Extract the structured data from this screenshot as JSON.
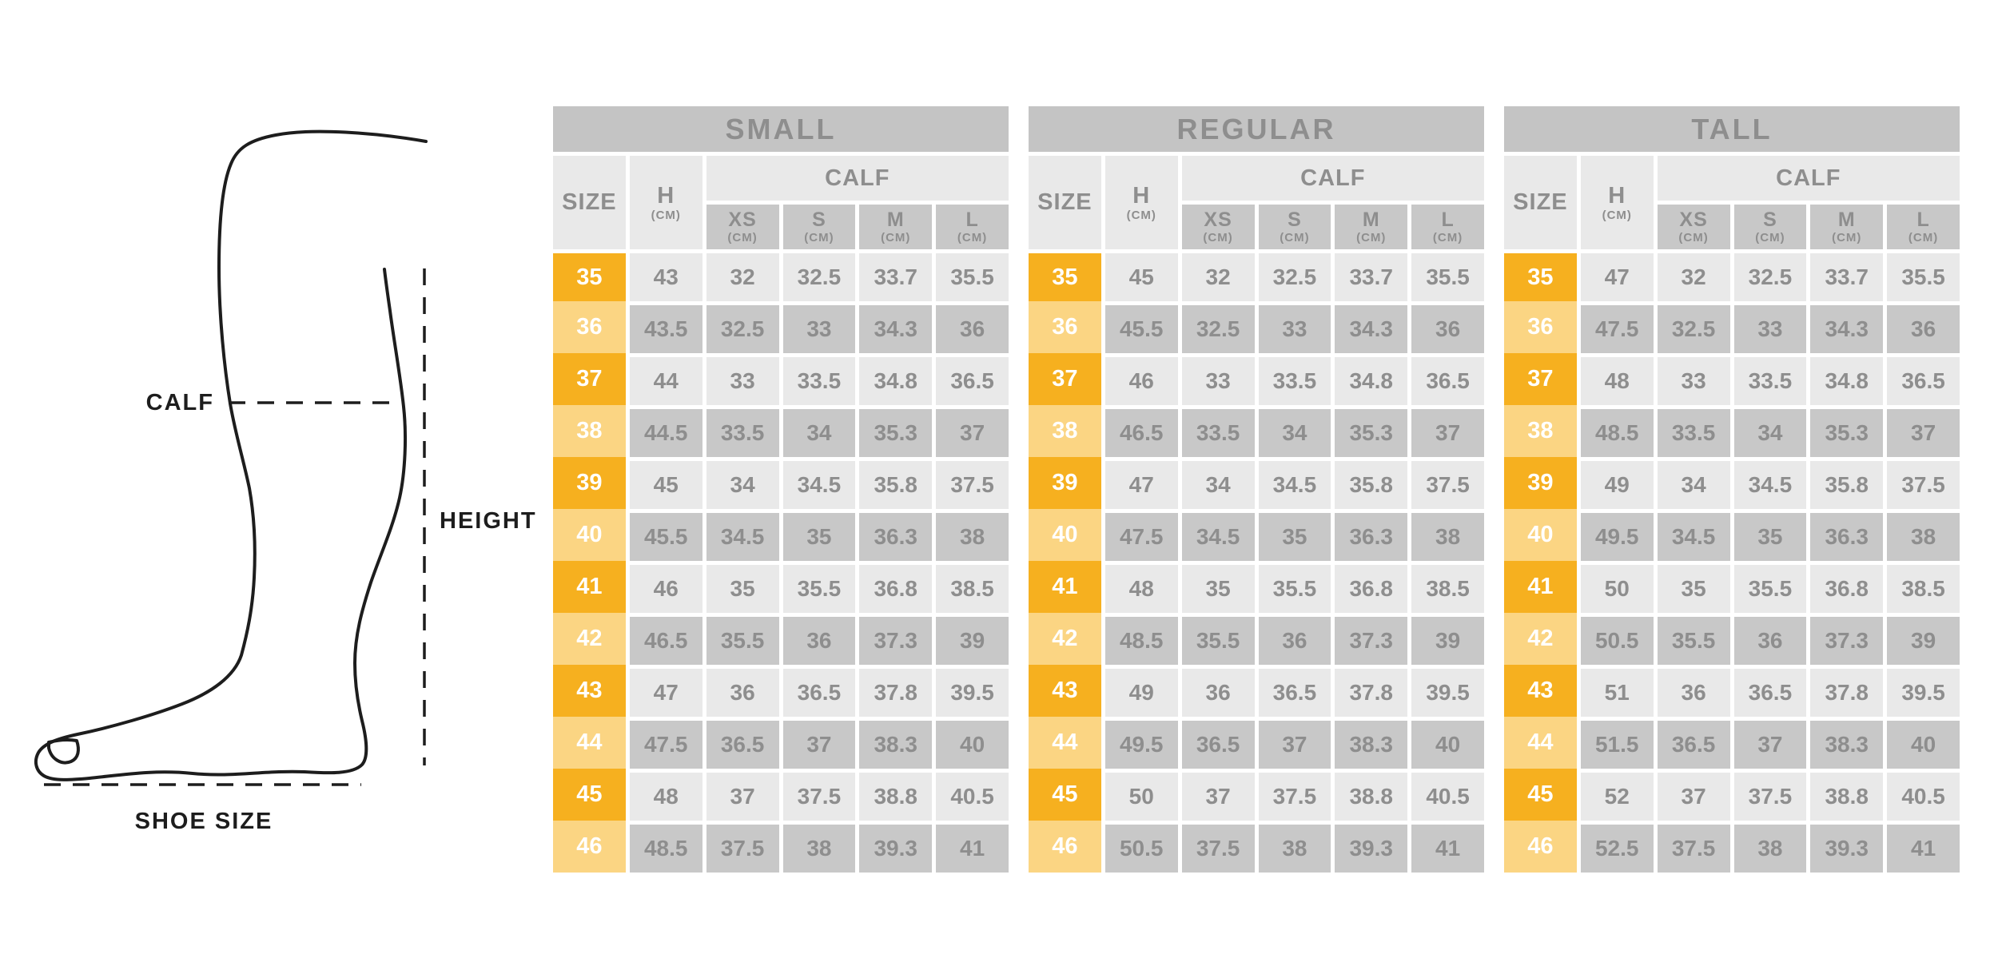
{
  "illustration": {
    "calf_label": "CALF",
    "height_label": "HEIGHT",
    "shoe_size_label": "SHOE SIZE"
  },
  "table_header": {
    "size": "SIZE",
    "h": "H",
    "unit": "(CM)",
    "calf": "CALF",
    "calf_cols": [
      "XS",
      "S",
      "M",
      "L"
    ]
  },
  "colors": {
    "accent_orange": "#F6B01F",
    "accent_orange_light": "#FBD583",
    "header_gray": "#C4C4C4",
    "row_gray_dark": "#C8C8C8",
    "row_gray_light": "#E9E9E9",
    "text_gray": "#8E8E8E",
    "line_ink": "#1D1D1D"
  },
  "tables": [
    {
      "title": "SMALL",
      "rows": [
        {
          "size": "35",
          "h": "43",
          "xs": "32",
          "s": "32.5",
          "m": "33.7",
          "l": "35.5"
        },
        {
          "size": "36",
          "h": "43.5",
          "xs": "32.5",
          "s": "33",
          "m": "34.3",
          "l": "36"
        },
        {
          "size": "37",
          "h": "44",
          "xs": "33",
          "s": "33.5",
          "m": "34.8",
          "l": "36.5"
        },
        {
          "size": "38",
          "h": "44.5",
          "xs": "33.5",
          "s": "34",
          "m": "35.3",
          "l": "37"
        },
        {
          "size": "39",
          "h": "45",
          "xs": "34",
          "s": "34.5",
          "m": "35.8",
          "l": "37.5"
        },
        {
          "size": "40",
          "h": "45.5",
          "xs": "34.5",
          "s": "35",
          "m": "36.3",
          "l": "38"
        },
        {
          "size": "41",
          "h": "46",
          "xs": "35",
          "s": "35.5",
          "m": "36.8",
          "l": "38.5"
        },
        {
          "size": "42",
          "h": "46.5",
          "xs": "35.5",
          "s": "36",
          "m": "37.3",
          "l": "39"
        },
        {
          "size": "43",
          "h": "47",
          "xs": "36",
          "s": "36.5",
          "m": "37.8",
          "l": "39.5"
        },
        {
          "size": "44",
          "h": "47.5",
          "xs": "36.5",
          "s": "37",
          "m": "38.3",
          "l": "40"
        },
        {
          "size": "45",
          "h": "48",
          "xs": "37",
          "s": "37.5",
          "m": "38.8",
          "l": "40.5"
        },
        {
          "size": "46",
          "h": "48.5",
          "xs": "37.5",
          "s": "38",
          "m": "39.3",
          "l": "41"
        }
      ]
    },
    {
      "title": "REGULAR",
      "rows": [
        {
          "size": "35",
          "h": "45",
          "xs": "32",
          "s": "32.5",
          "m": "33.7",
          "l": "35.5"
        },
        {
          "size": "36",
          "h": "45.5",
          "xs": "32.5",
          "s": "33",
          "m": "34.3",
          "l": "36"
        },
        {
          "size": "37",
          "h": "46",
          "xs": "33",
          "s": "33.5",
          "m": "34.8",
          "l": "36.5"
        },
        {
          "size": "38",
          "h": "46.5",
          "xs": "33.5",
          "s": "34",
          "m": "35.3",
          "l": "37"
        },
        {
          "size": "39",
          "h": "47",
          "xs": "34",
          "s": "34.5",
          "m": "35.8",
          "l": "37.5"
        },
        {
          "size": "40",
          "h": "47.5",
          "xs": "34.5",
          "s": "35",
          "m": "36.3",
          "l": "38"
        },
        {
          "size": "41",
          "h": "48",
          "xs": "35",
          "s": "35.5",
          "m": "36.8",
          "l": "38.5"
        },
        {
          "size": "42",
          "h": "48.5",
          "xs": "35.5",
          "s": "36",
          "m": "37.3",
          "l": "39"
        },
        {
          "size": "43",
          "h": "49",
          "xs": "36",
          "s": "36.5",
          "m": "37.8",
          "l": "39.5"
        },
        {
          "size": "44",
          "h": "49.5",
          "xs": "36.5",
          "s": "37",
          "m": "38.3",
          "l": "40"
        },
        {
          "size": "45",
          "h": "50",
          "xs": "37",
          "s": "37.5",
          "m": "38.8",
          "l": "40.5"
        },
        {
          "size": "46",
          "h": "50.5",
          "xs": "37.5",
          "s": "38",
          "m": "39.3",
          "l": "41"
        }
      ]
    },
    {
      "title": "TALL",
      "rows": [
        {
          "size": "35",
          "h": "47",
          "xs": "32",
          "s": "32.5",
          "m": "33.7",
          "l": "35.5"
        },
        {
          "size": "36",
          "h": "47.5",
          "xs": "32.5",
          "s": "33",
          "m": "34.3",
          "l": "36"
        },
        {
          "size": "37",
          "h": "48",
          "xs": "33",
          "s": "33.5",
          "m": "34.8",
          "l": "36.5"
        },
        {
          "size": "38",
          "h": "48.5",
          "xs": "33.5",
          "s": "34",
          "m": "35.3",
          "l": "37"
        },
        {
          "size": "39",
          "h": "49",
          "xs": "34",
          "s": "34.5",
          "m": "35.8",
          "l": "37.5"
        },
        {
          "size": "40",
          "h": "49.5",
          "xs": "34.5",
          "s": "35",
          "m": "36.3",
          "l": "38"
        },
        {
          "size": "41",
          "h": "50",
          "xs": "35",
          "s": "35.5",
          "m": "36.8",
          "l": "38.5"
        },
        {
          "size": "42",
          "h": "50.5",
          "xs": "35.5",
          "s": "36",
          "m": "37.3",
          "l": "39"
        },
        {
          "size": "43",
          "h": "51",
          "xs": "36",
          "s": "36.5",
          "m": "37.8",
          "l": "39.5"
        },
        {
          "size": "44",
          "h": "51.5",
          "xs": "36.5",
          "s": "37",
          "m": "38.3",
          "l": "40"
        },
        {
          "size": "45",
          "h": "52",
          "xs": "37",
          "s": "37.5",
          "m": "38.8",
          "l": "40.5"
        },
        {
          "size": "46",
          "h": "52.5",
          "xs": "37.5",
          "s": "38",
          "m": "39.3",
          "l": "41"
        }
      ]
    }
  ]
}
